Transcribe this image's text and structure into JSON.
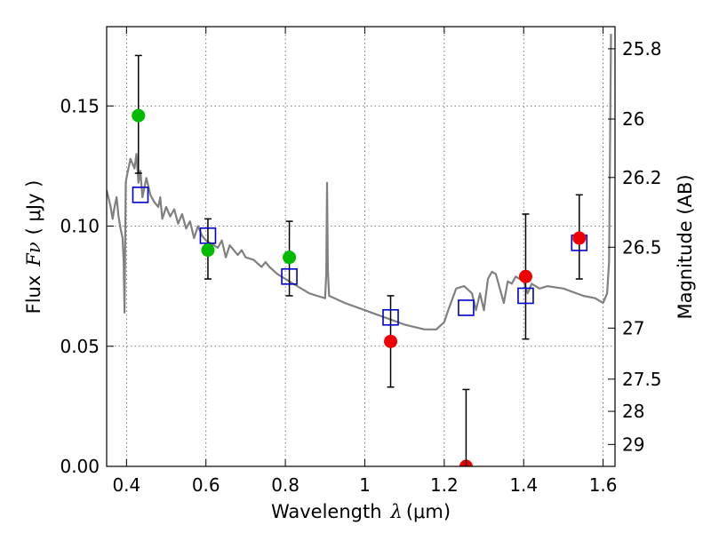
{
  "chart_data": {
    "type": "scatter",
    "title": "",
    "xlabel_text": "Wavelength",
    "xlabel_symbol": "λ",
    "xlabel_unit": "(μm)",
    "ylabel_text": "Flux",
    "ylabel_symbol": "Fν",
    "ylabel_unit": "( μJy )",
    "y2label": "Magnitude (AB)",
    "xlim": [
      0.35,
      1.63
    ],
    "ylim": [
      0.0,
      0.183
    ],
    "grid": true,
    "x_ticks": [
      0.4,
      0.6,
      0.8,
      1.0,
      1.2,
      1.4,
      1.6
    ],
    "x_tick_labels": [
      "0.4",
      "0.6",
      "0.8",
      "1",
      "1.2",
      "1.4",
      "1.6"
    ],
    "y_ticks": [
      0.0,
      0.05,
      0.1,
      0.15
    ],
    "y_tick_labels": [
      "0.00",
      "0.05",
      "0.10",
      "0.15"
    ],
    "y2_ticks": [
      25.8,
      26,
      26.2,
      26.5,
      27,
      27.5,
      28,
      29
    ],
    "y2_tick_labels": [
      "25.8",
      "26",
      "26.2",
      "26.5",
      "27",
      "27.5",
      "28",
      "29"
    ],
    "colors": {
      "model": "#808080",
      "green": "#00bb00",
      "red": "#ee0000",
      "square": "#0000cc",
      "error": "#000000",
      "grid": "#555555"
    },
    "series": [
      {
        "kind": "model-spectrum",
        "x": [
          0.35,
          0.36,
          0.365,
          0.37,
          0.375,
          0.38,
          0.385,
          0.39,
          0.393,
          0.395,
          0.398,
          0.4,
          0.41,
          0.42,
          0.425,
          0.43,
          0.435,
          0.44,
          0.45,
          0.46,
          0.47,
          0.48,
          0.485,
          0.49,
          0.5,
          0.51,
          0.52,
          0.53,
          0.54,
          0.55,
          0.56,
          0.57,
          0.58,
          0.59,
          0.6,
          0.61,
          0.62,
          0.63,
          0.64,
          0.65,
          0.66,
          0.67,
          0.68,
          0.69,
          0.7,
          0.72,
          0.74,
          0.75,
          0.76,
          0.78,
          0.8,
          0.82,
          0.84,
          0.86,
          0.88,
          0.9,
          0.903,
          0.905,
          0.907,
          0.91,
          0.95,
          1.0,
          1.05,
          1.1,
          1.15,
          1.18,
          1.2,
          1.21,
          1.23,
          1.25,
          1.27,
          1.28,
          1.29,
          1.3,
          1.31,
          1.32,
          1.33,
          1.35,
          1.36,
          1.37,
          1.38,
          1.4,
          1.41,
          1.42,
          1.44,
          1.46,
          1.5,
          1.55,
          1.58,
          1.6,
          1.61,
          1.615,
          1.62
        ],
        "y": [
          0.115,
          0.108,
          0.103,
          0.108,
          0.112,
          0.104,
          0.099,
          0.095,
          0.085,
          0.064,
          0.118,
          0.12,
          0.128,
          0.124,
          0.13,
          0.118,
          0.123,
          0.112,
          0.12,
          0.113,
          0.11,
          0.108,
          0.112,
          0.103,
          0.108,
          0.104,
          0.107,
          0.101,
          0.105,
          0.099,
          0.102,
          0.095,
          0.1,
          0.096,
          0.094,
          0.093,
          0.092,
          0.091,
          0.094,
          0.087,
          0.092,
          0.09,
          0.088,
          0.09,
          0.087,
          0.086,
          0.083,
          0.085,
          0.083,
          0.08,
          0.078,
          0.076,
          0.074,
          0.072,
          0.071,
          0.07,
          0.08,
          0.118,
          0.082,
          0.071,
          0.068,
          0.065,
          0.062,
          0.059,
          0.057,
          0.057,
          0.06,
          0.065,
          0.074,
          0.075,
          0.072,
          0.065,
          0.072,
          0.065,
          0.078,
          0.081,
          0.08,
          0.068,
          0.077,
          0.076,
          0.079,
          0.077,
          0.072,
          0.076,
          0.074,
          0.075,
          0.074,
          0.071,
          0.07,
          0.068,
          0.072,
          0.085,
          0.18
        ]
      },
      {
        "kind": "green-points",
        "points": [
          {
            "x": 0.43,
            "y": 0.146,
            "err_lo": 0.122,
            "err_hi": 0.171
          },
          {
            "x": 0.605,
            "y": 0.09,
            "err_lo": 0.078,
            "err_hi": 0.103
          },
          {
            "x": 0.81,
            "y": 0.087,
            "err_lo": 0.071,
            "err_hi": 0.102
          }
        ]
      },
      {
        "kind": "red-points",
        "points": [
          {
            "x": 1.065,
            "y": 0.052,
            "err_lo": 0.033,
            "err_hi": 0.071
          },
          {
            "x": 1.255,
            "y": 0.0,
            "err_lo": 0.0,
            "err_hi": 0.032
          },
          {
            "x": 1.405,
            "y": 0.079,
            "err_lo": 0.053,
            "err_hi": 0.105
          },
          {
            "x": 1.54,
            "y": 0.095,
            "err_lo": 0.078,
            "err_hi": 0.113
          }
        ]
      },
      {
        "kind": "model-squares",
        "points": [
          {
            "x": 0.435,
            "y": 0.113
          },
          {
            "x": 0.605,
            "y": 0.096
          },
          {
            "x": 0.81,
            "y": 0.079
          },
          {
            "x": 1.065,
            "y": 0.062
          },
          {
            "x": 1.255,
            "y": 0.066
          },
          {
            "x": 1.405,
            "y": 0.071
          },
          {
            "x": 1.54,
            "y": 0.093
          }
        ]
      }
    ]
  }
}
